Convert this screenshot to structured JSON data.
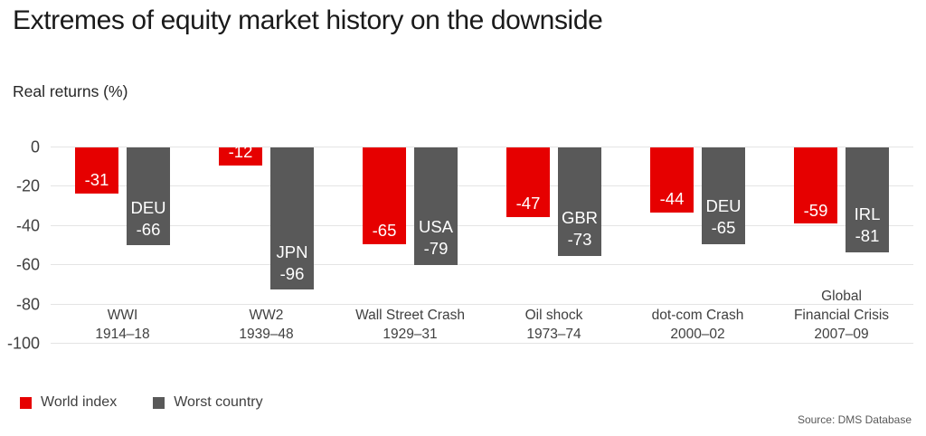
{
  "header": {
    "title": "Extremes of equity market history on the downside",
    "subtitle": "Real returns (%)"
  },
  "legend": {
    "items": [
      {
        "label": "World index",
        "color": "#e60000"
      },
      {
        "label": "Worst country",
        "color": "#595959"
      }
    ]
  },
  "source": "Source: DMS Database",
  "colors": {
    "world_index": "#e60000",
    "worst_country": "#595959",
    "gridline": "#e4e4e4"
  },
  "chart_data": {
    "type": "bar",
    "title": "Extremes of equity market history on the downside",
    "ylabel": "Real returns (%)",
    "ylim": [
      -100,
      0
    ],
    "yticks": [
      0,
      -20,
      -40,
      -60,
      -80,
      -100
    ],
    "grid": true,
    "legend_position": "bottom-left",
    "categories": [
      [
        "WWI",
        "1914–18"
      ],
      [
        "WW2",
        "1939–48"
      ],
      [
        "Wall Street Crash",
        "1929–31"
      ],
      [
        "Oil shock",
        "1973–74"
      ],
      [
        "dot-com Crash",
        "2000–02"
      ],
      [
        "Global",
        "Financial Crisis",
        "2007–09"
      ]
    ],
    "series": [
      {
        "name": "World index",
        "color": "#e60000",
        "values": [
          -31,
          -12,
          -65,
          -47,
          -44,
          -59
        ]
      },
      {
        "name": "Worst country",
        "color": "#595959",
        "values": [
          -66,
          -96,
          -79,
          -73,
          -65,
          -81
        ],
        "labels": [
          "DEU",
          "JPN",
          "USA",
          "GBR",
          "DEU",
          "IRL"
        ]
      }
    ]
  }
}
